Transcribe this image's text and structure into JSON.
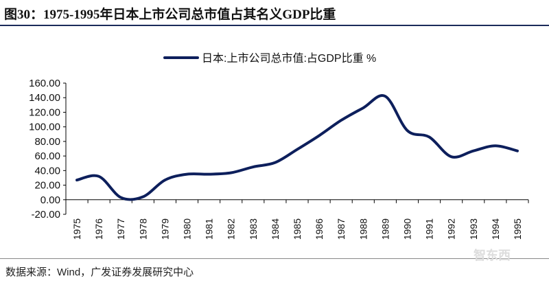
{
  "title": "图30：1975-1995年日本上市公司总市值占其名义GDP比重",
  "source": "数据来源：Wind，广发证券发展研究中心",
  "watermark": "智东西",
  "chart_data": {
    "type": "line",
    "title": "",
    "legend_position": "top",
    "grid": false,
    "ylim": [
      -20,
      160
    ],
    "yticks": [
      "160.00",
      "140.00",
      "120.00",
      "100.00",
      "80.00",
      "60.00",
      "40.00",
      "20.00",
      "0.00",
      "-20.00"
    ],
    "categories": [
      "1975",
      "1976",
      "1977",
      "1978",
      "1979",
      "1980",
      "1981",
      "1982",
      "1983",
      "1984",
      "1985",
      "1986",
      "1987",
      "1988",
      "1989",
      "1990",
      "1991",
      "1992",
      "1993",
      "1994",
      "1995"
    ],
    "series": [
      {
        "name": "日本:上市公司总市值:占GDP比重 %",
        "color": "#0d1f5c",
        "values": [
          27,
          32,
          3,
          4,
          27,
          35,
          35,
          37,
          45,
          51,
          69,
          88,
          109,
          126,
          142,
          95,
          86,
          59,
          67,
          74,
          67
        ]
      }
    ]
  }
}
